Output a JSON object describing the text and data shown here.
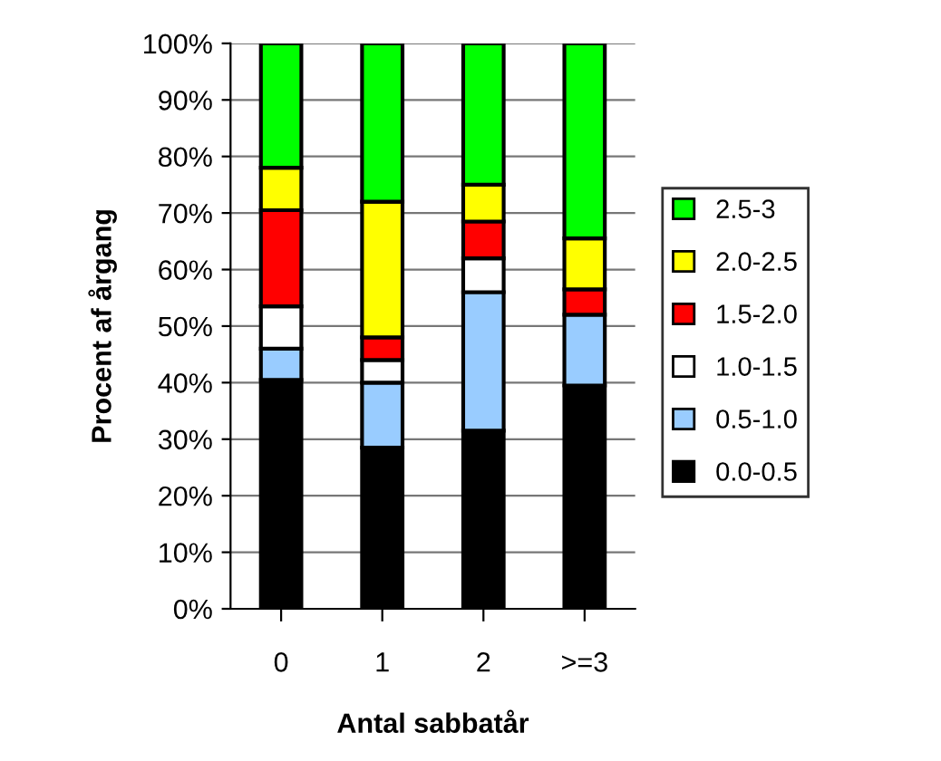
{
  "chart_data": {
    "type": "bar",
    "stacked": true,
    "xlabel": "Antal sabbatår",
    "ylabel": "Procent af årgang",
    "categories": [
      "0",
      "1",
      "2",
      ">=3"
    ],
    "series": [
      {
        "name": "0.0-0.5",
        "color": "#000000",
        "values": [
          40.5,
          28.5,
          31.5,
          39.5
        ]
      },
      {
        "name": "0.5-1.0",
        "color": "#99ccff",
        "values": [
          5.5,
          11.5,
          24.5,
          12.5
        ]
      },
      {
        "name": "1.0-1.5",
        "color": "#ffffff",
        "values": [
          7.5,
          4,
          6,
          0
        ]
      },
      {
        "name": "1.5-2.0",
        "color": "#ff0000",
        "values": [
          17,
          4,
          6.5,
          4.5
        ]
      },
      {
        "name": "2.0-2.5",
        "color": "#ffff00",
        "values": [
          7.5,
          24,
          6.5,
          9
        ]
      },
      {
        "name": "2.5-3",
        "color": "#00ff00",
        "values": [
          22,
          28,
          25,
          34.5
        ]
      }
    ],
    "ylim": [
      0,
      100
    ],
    "yticks": [
      {
        "value": 0,
        "label": "0%"
      },
      {
        "value": 10,
        "label": "10%"
      },
      {
        "value": 20,
        "label": "20%"
      },
      {
        "value": 30,
        "label": "30%"
      },
      {
        "value": 40,
        "label": "40%"
      },
      {
        "value": 50,
        "label": "50%"
      },
      {
        "value": 60,
        "label": "60%"
      },
      {
        "value": 70,
        "label": "70%"
      },
      {
        "value": 80,
        "label": "80%"
      },
      {
        "value": 90,
        "label": "90%"
      },
      {
        "value": 100,
        "label": "100%"
      }
    ],
    "grid": "y",
    "legend": "right"
  }
}
